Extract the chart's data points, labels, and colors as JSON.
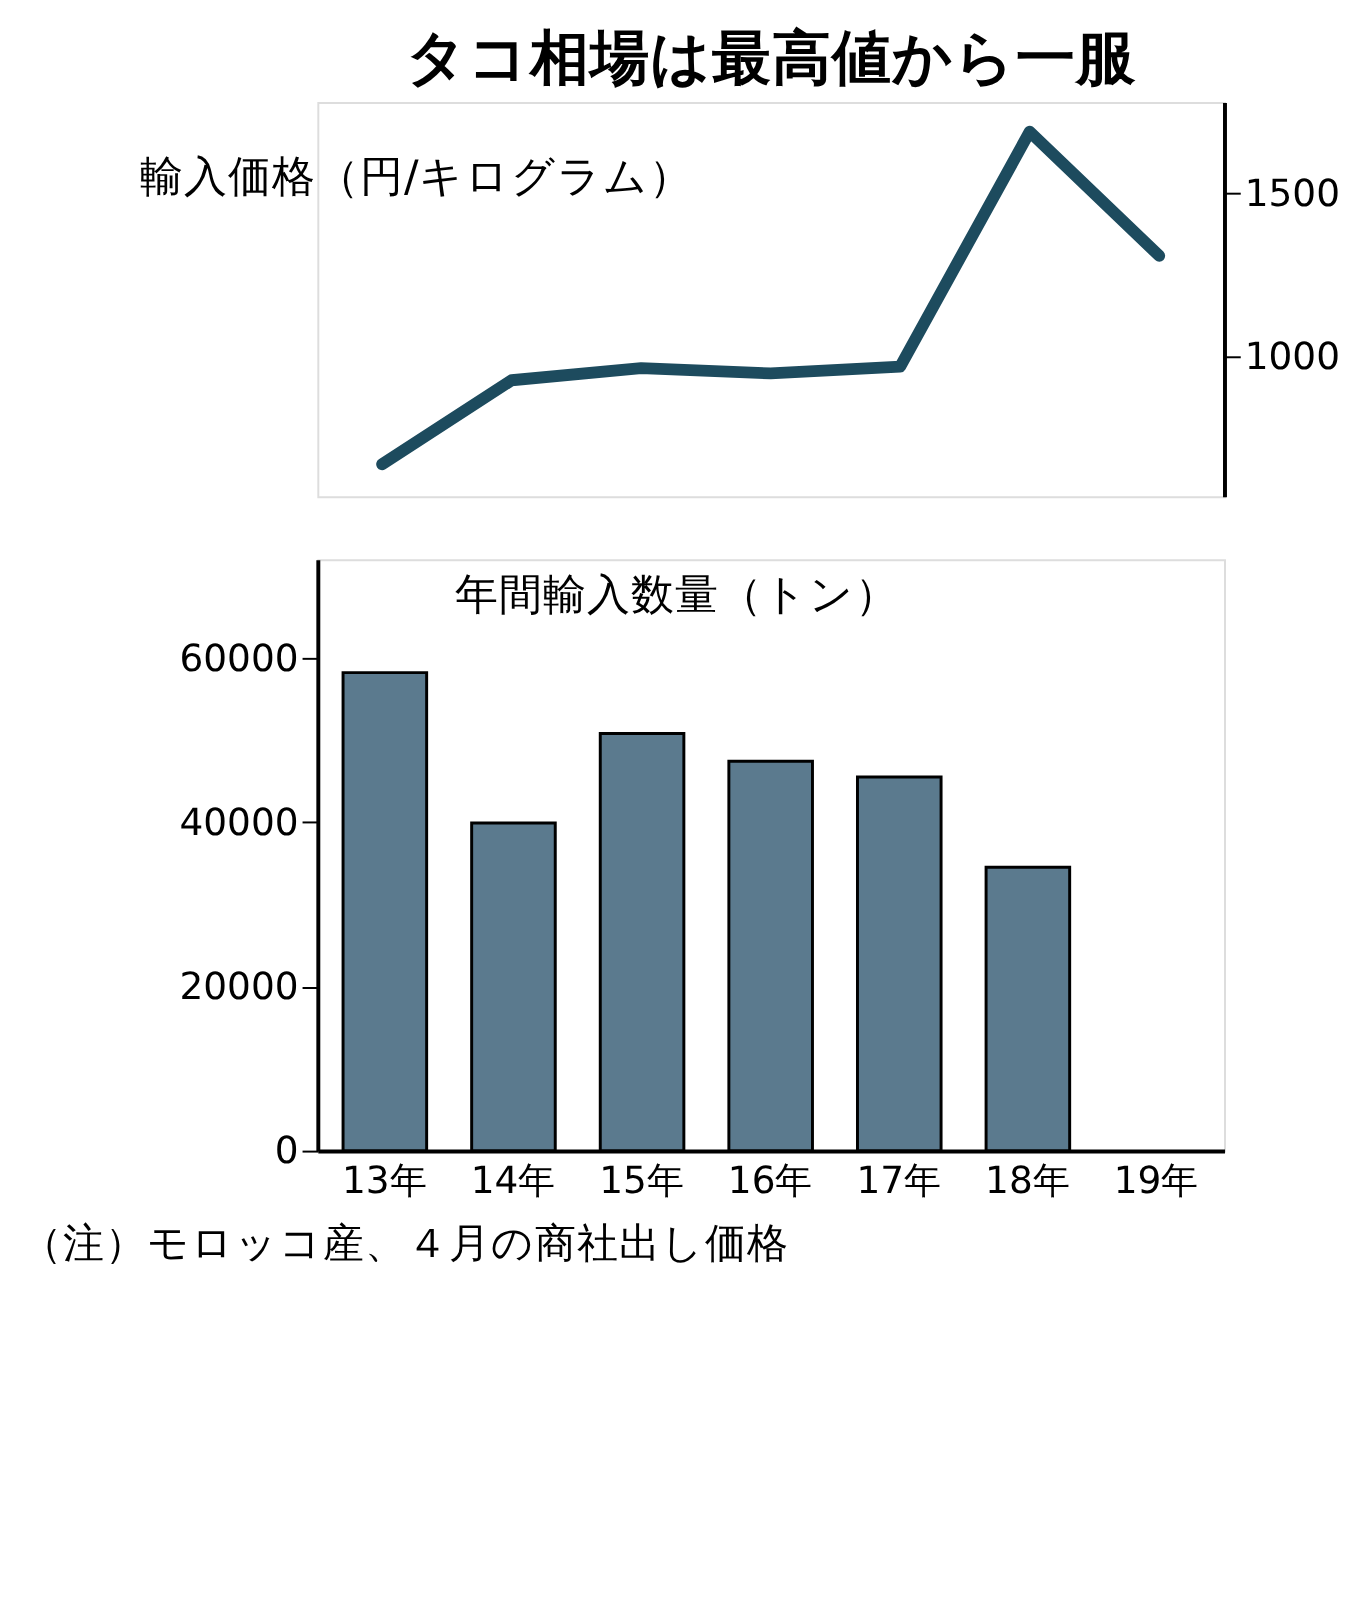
{
  "chart_data": [
    {
      "type": "line",
      "title": "タコ相場は最高値から一服",
      "ylabel": "輸入価格（円/キログラム）",
      "categories": [
        null,
        null,
        null,
        null,
        null,
        null,
        null
      ],
      "series": [
        {
          "color": "#1d4b5e",
          "values": [
            668,
            926,
            963,
            947,
            968,
            1689,
            1308
          ]
        }
      ],
      "ylim": [
        570,
        1780
      ],
      "yticks": [
        1000,
        1500
      ],
      "tick_labels": "y",
      "line_style": "solid",
      "marker": "none",
      "grid": false
    },
    {
      "type": "bar",
      "ylabel": "年間輸入数量（トン）",
      "categories": [
        "13年",
        "14年",
        "15年",
        "16年",
        "17年",
        "18年",
        "19年"
      ],
      "series": [
        {
          "color": "#5b7a8e",
          "values": [
            58200,
            39900,
            50800,
            47400,
            45500,
            34500,
            null
          ]
        }
      ],
      "ylim": [
        0,
        72000
      ],
      "yticks": [
        0,
        20000,
        40000,
        60000
      ],
      "grid": false,
      "annotations": [
        "（注）モロッコ産、４月の商社出し価格"
      ]
    }
  ]
}
